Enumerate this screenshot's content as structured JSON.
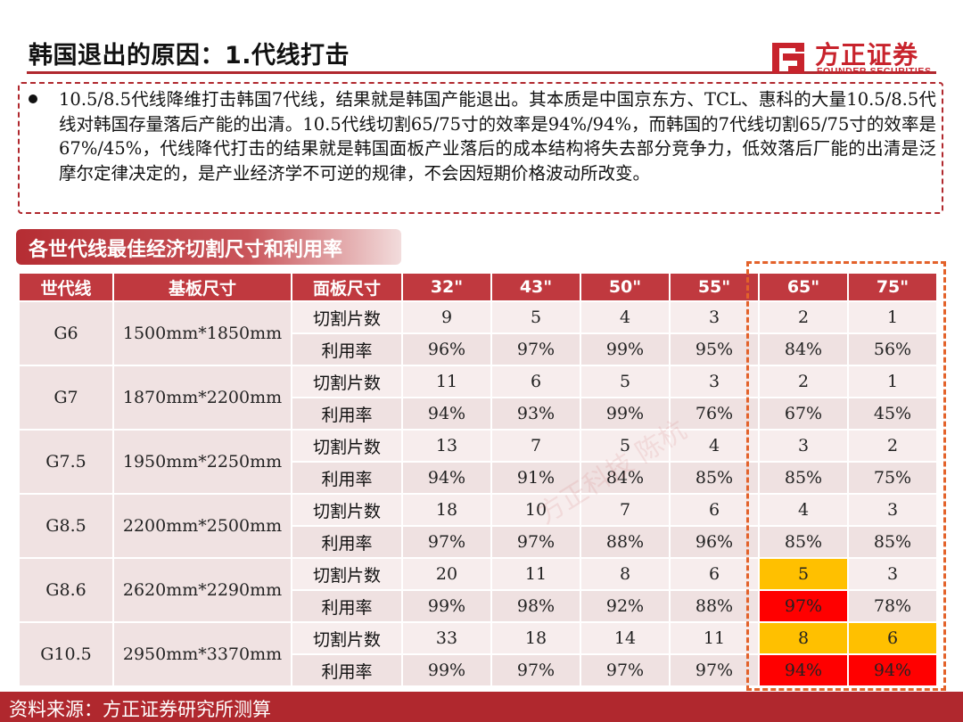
{
  "header": {
    "title": "韩国退出的原因：1.代线打击",
    "logo_cn": "方正证券",
    "logo_en": "FOUNDER SECURITIES"
  },
  "bullet": "10.5/8.5代线降维打击韩国7代线，结果就是韩国产能退出。其本质是中国京东方、TCL、惠科的大量10.5/8.5代线对韩国存量落后产能的出清。10.5代线切割65/75寸的效率是94%/94%，而韩国的7代线切割65/75寸的效率是67%/45%，代线降代打击的结果就是韩国面板产业落后的成本结构将失去部分竞争力，低效落后厂能的出清是泛摩尔定律决定的，是产业经济学不可逆的规律，不会因短期价格波动所改变。",
  "section_title": "各世代线最佳经济切割尺寸和利用率",
  "table": {
    "headers": [
      "世代线",
      "基板尺寸",
      "面板尺寸",
      "32\"",
      "43\"",
      "50\"",
      "55\"",
      "65\"",
      "75\""
    ],
    "row_labels": {
      "count": "切割片数",
      "util": "利用率"
    },
    "rows": [
      {
        "gen": "G6",
        "substrate": "1500mm*1850mm",
        "count": [
          "9",
          "5",
          "4",
          "3",
          "2",
          "1"
        ],
        "util": [
          "96%",
          "97%",
          "99%",
          "95%",
          "84%",
          "56%"
        ]
      },
      {
        "gen": "G7",
        "substrate": "1870mm*2200mm",
        "count": [
          "11",
          "6",
          "5",
          "3",
          "2",
          "1"
        ],
        "util": [
          "94%",
          "93%",
          "99%",
          "76%",
          "67%",
          "45%"
        ]
      },
      {
        "gen": "G7.5",
        "substrate": "1950mm*2250mm",
        "count": [
          "13",
          "7",
          "5",
          "4",
          "3",
          "2"
        ],
        "util": [
          "94%",
          "91%",
          "84%",
          "85%",
          "85%",
          "75%"
        ]
      },
      {
        "gen": "G8.5",
        "substrate": "2200mm*2500mm",
        "count": [
          "18",
          "10",
          "7",
          "6",
          "4",
          "3"
        ],
        "util": [
          "97%",
          "97%",
          "88%",
          "96%",
          "85%",
          "85%"
        ]
      },
      {
        "gen": "G8.6",
        "substrate": "2620mm*2290mm",
        "count": [
          "20",
          "11",
          "8",
          "6",
          "5",
          "3"
        ],
        "util": [
          "99%",
          "98%",
          "92%",
          "88%",
          "97%",
          "78%"
        ]
      },
      {
        "gen": "G10.5",
        "substrate": "2950mm*3370mm",
        "count": [
          "33",
          "18",
          "14",
          "11",
          "8",
          "6"
        ],
        "util": [
          "99%",
          "97%",
          "97%",
          "97%",
          "94%",
          "94%"
        ]
      }
    ]
  },
  "highlight_colors": {
    "orange": "#ffc000",
    "red": "#ff0000"
  },
  "source": "资料来源：方正证券研究所测算",
  "watermark": "方正科技 陈杭"
}
